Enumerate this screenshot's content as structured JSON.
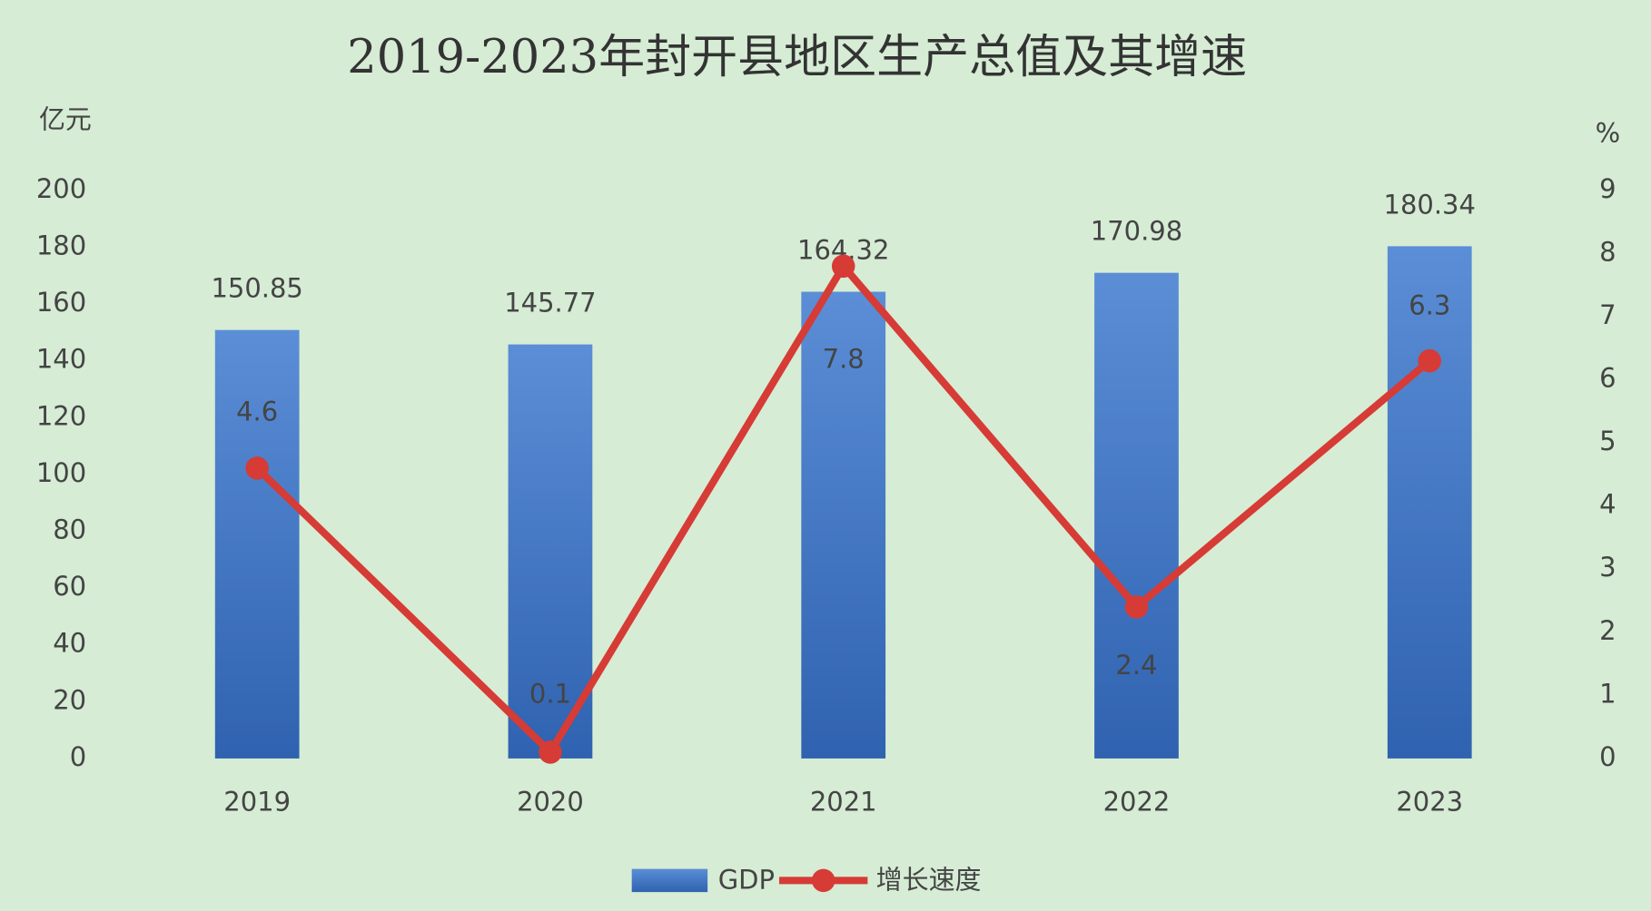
{
  "chart_data": {
    "type": "combo",
    "title": "2019-2023年封开县地区生产总值及其增速",
    "y_label": "亿元",
    "y2_label": "%",
    "categories": [
      "2019",
      "2020",
      "2021",
      "2022",
      "2023"
    ],
    "series": [
      {
        "name": "GDP",
        "type": "bar",
        "color": "#4a7cc6",
        "values": [
          150.85,
          145.77,
          164.32,
          170.98,
          180.34
        ]
      },
      {
        "name": "增长速度",
        "type": "line",
        "axis": "y2",
        "color": "#d63b35",
        "values": [
          4.6,
          0.1,
          7.8,
          2.4,
          6.3
        ]
      }
    ],
    "ylim": [
      0,
      200
    ],
    "yticks": [
      0,
      20,
      40,
      60,
      80,
      100,
      120,
      140,
      160,
      180,
      200
    ],
    "y2lim": [
      0,
      9
    ],
    "y2ticks": [
      0,
      1,
      2,
      3,
      4,
      5,
      6,
      7,
      8,
      9
    ],
    "legend": "bottom"
  }
}
